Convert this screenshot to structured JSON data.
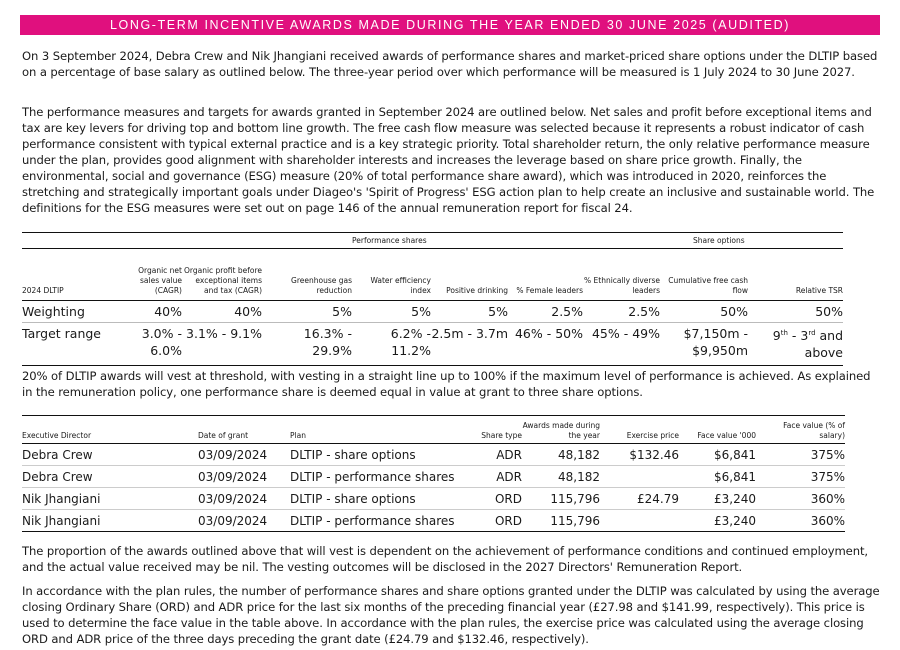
{
  "title": "LONG-TERM INCENTIVE AWARDS MADE DURING THE YEAR ENDED 30 JUNE 2025 (AUDITED)",
  "paragraphs": {
    "p1": "On 3 September 2024, Debra Crew and Nik Jhangiani received awards of performance shares and market-priced share options under the DLTIP based on a percentage of base salary as outlined below. The three-year period over which performance will be measured is 1 July 2024 to 30 June 2027.",
    "p2": "The performance measures and targets for awards granted in September 2024 are outlined below. Net sales and profit before exceptional items and tax are key levers for driving top and bottom line growth. The free cash flow measure was selected because it represents a robust indicator of cash performance consistent with typical external practice and is a key strategic priority. Total shareholder return, the only relative performance measure under the plan, provides good alignment with shareholder interests and increases the leverage based on share price growth. Finally, the environmental, social and governance (ESG) measure (20% of total performance share award), which was introduced in 2020, reinforces the stretching and strategically important goals under Diageo's 'Spirit of Progress' ESG action plan to help create an inclusive and sustainable world. The definitions for the ESG measures were set out on page 146 of the annual remuneration report for fiscal 24.",
    "p3": "20% of DLTIP awards will vest at threshold, with vesting in a straight line up to 100% if the maximum level of performance is achieved. As explained in the remuneration policy, one performance share is deemed equal in value at grant to three share options.",
    "p4": "The proportion of the awards outlined above that will vest is dependent on the achievement of performance conditions and continued employment, and the actual value received may be nil. The vesting outcomes will be disclosed in the 2027 Directors' Remuneration Report.",
    "p5": "In accordance with the plan rules, the number of performance shares and share options granted under the DLTIP was calculated by using the average closing Ordinary Share (ORD) and ADR price for the last six months of the preceding financial year (£27.98 and $141.99, respectively). This price is used to determine the face value in the table above. In accordance with the plan rules, the exercise price was calculated using the average closing ORD and ADR price of the three days preceding the grant date (£24.79 and $132.46, respectively)."
  },
  "measures_table": {
    "group_performance": "Performance shares",
    "group_options": "Share options",
    "headers": [
      "2024 DLTIP",
      "Organic net sales value (CAGR)",
      "Organic profit before exceptional items and tax (CAGR)",
      "Greenhouse gas reduction",
      "Water efficiency index",
      "Positive drinking",
      "% Female leaders",
      "% Ethnically diverse leaders",
      "Cumulative free cash flow",
      "Relative TSR"
    ],
    "weighting": [
      "Weighting",
      "40%",
      "40%",
      "5%",
      "5%",
      "5%",
      "2.5%",
      "2.5%",
      "50%",
      "50%"
    ],
    "target": [
      "Target range",
      "3.0% - 6.0%",
      "3.1% - 9.1%",
      "16.3% - 29.9%",
      "6.2% - 11.2%",
      "2.5m - 3.7m",
      "46% - 50%",
      "45% - 49%",
      "$7,150m - $9,950m"
    ],
    "tsr_target": {
      "a": "9",
      "a_sup": "th",
      "mid": " - 3",
      "b_sup": "rd",
      "end": " and above"
    }
  },
  "awards_table": {
    "headers": [
      "Executive Director",
      "Date of grant",
      "Plan",
      "Share type",
      "Awards made during the year",
      "Exercise price",
      "Face value '000",
      "Face value (% of salary)"
    ],
    "rows": [
      [
        "Debra Crew",
        "03/09/2024",
        "DLTIP - share options",
        "ADR",
        "48,182",
        "$132.46",
        "$6,841",
        "375%"
      ],
      [
        "Debra Crew",
        "03/09/2024",
        "DLTIP - performance shares",
        "ADR",
        "48,182",
        "",
        "$6,841",
        "375%"
      ],
      [
        "Nik Jhangiani",
        "03/09/2024",
        "DLTIP - share options",
        "ORD",
        "115,796",
        "£24.79",
        "£3,240",
        "360%"
      ],
      [
        "Nik Jhangiani",
        "03/09/2024",
        "DLTIP - performance shares",
        "ORD",
        "115,796",
        "",
        "£3,240",
        "360%"
      ]
    ]
  },
  "colors": {
    "accent": "#e0107e"
  }
}
